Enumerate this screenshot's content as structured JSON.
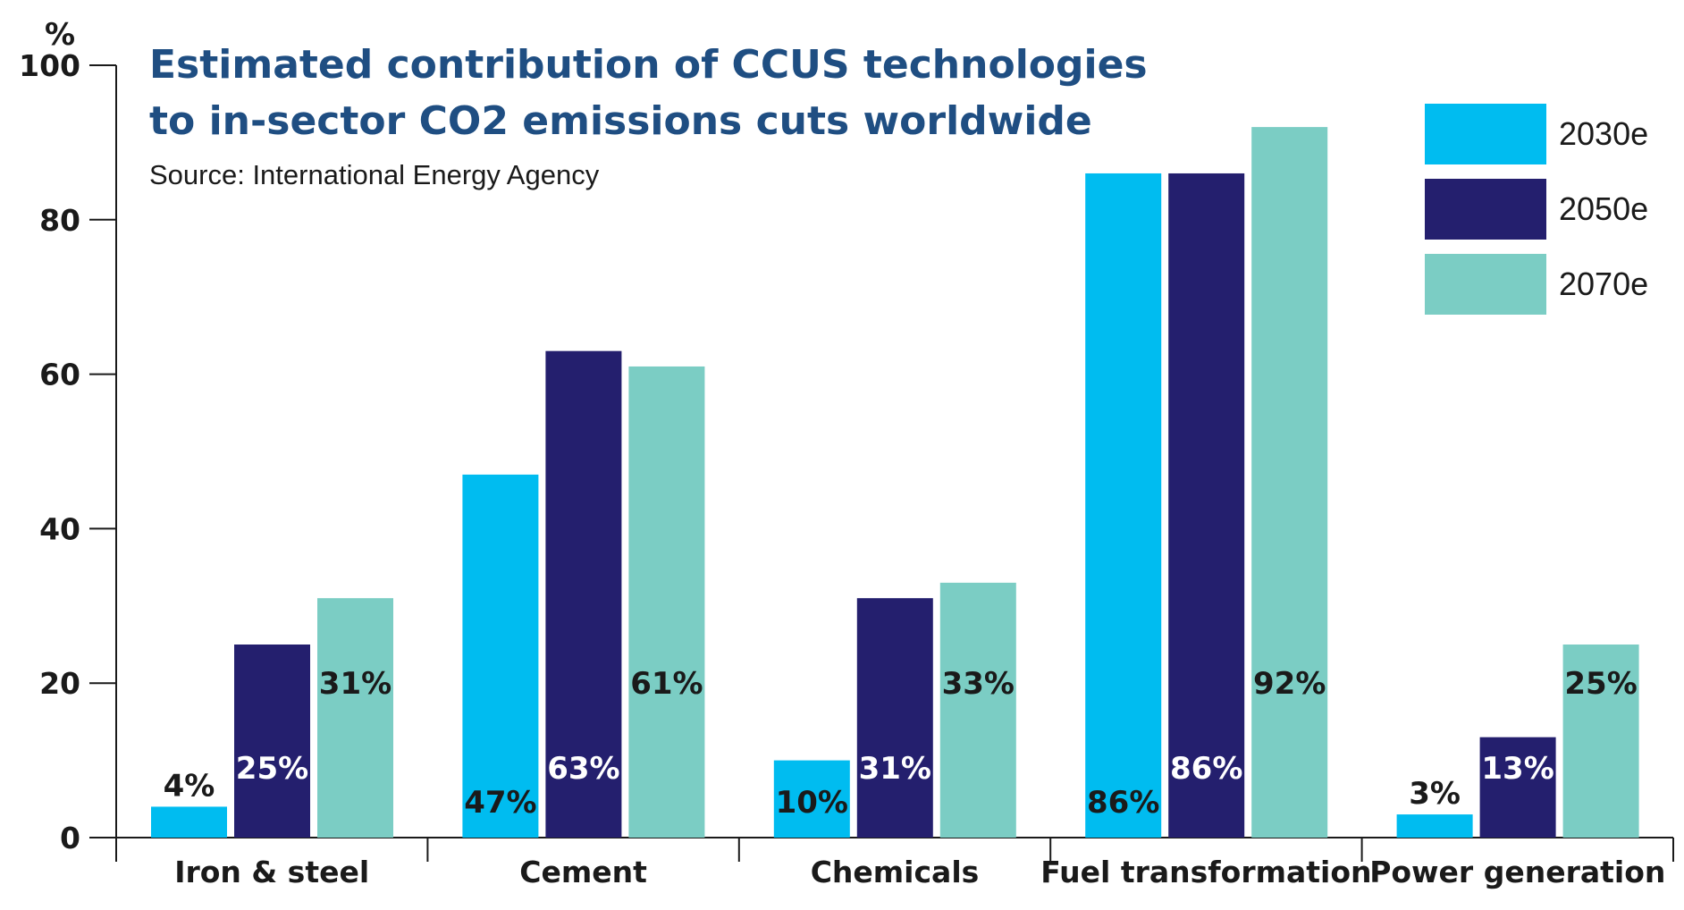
{
  "chart_data": {
    "type": "bar",
    "title_lines": [
      "Estimated contribution of CCUS technologies",
      "to in-sector CO2 emissions cuts worldwide"
    ],
    "subtitle": "Source: International Energy Agency",
    "ylabel": "%",
    "xlabel": "",
    "ylim": [
      0,
      100
    ],
    "yticks": [
      "0",
      "20",
      "40",
      "60",
      "80",
      "100"
    ],
    "categories": [
      "Iron & steel",
      "Cement",
      "Chemicals",
      "Fuel transformation",
      "Power generation"
    ],
    "series": [
      {
        "name": "2030e",
        "color": "#00bcf0",
        "values": [
          4,
          47,
          10,
          86,
          3
        ],
        "labels": [
          "4%",
          "47%",
          "10%",
          "86%",
          "3%"
        ]
      },
      {
        "name": "2050e",
        "color": "#241f6e",
        "values": [
          25,
          63,
          31,
          86,
          13
        ],
        "labels": [
          "25%",
          "63%",
          "31%",
          "86%",
          "13%"
        ]
      },
      {
        "name": "2070e",
        "color": "#7bcdc4",
        "values": [
          31,
          61,
          33,
          92,
          25
        ],
        "labels": [
          "31%",
          "61%",
          "33%",
          "92%",
          "25%"
        ]
      }
    ],
    "label_colors": [
      "#1a1a1a",
      "#ffffff",
      "#1a1a1a"
    ],
    "legend_position": "top-right",
    "grid": false
  }
}
